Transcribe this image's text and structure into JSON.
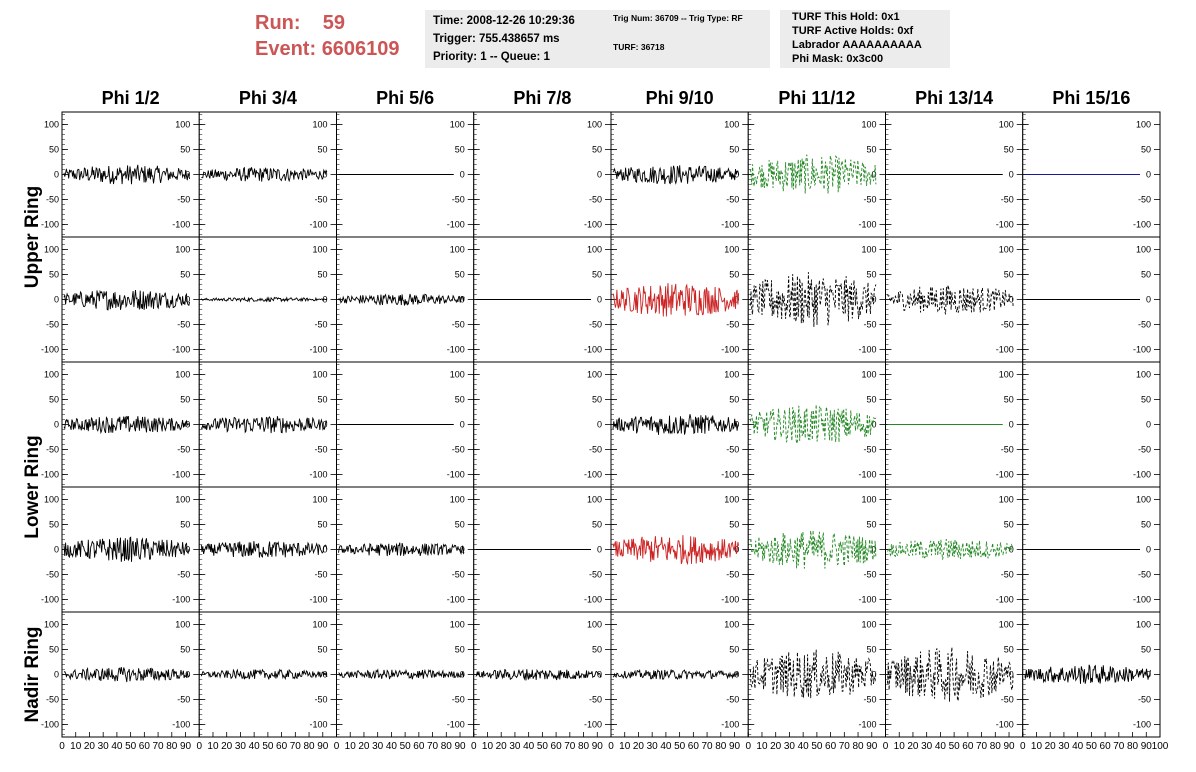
{
  "header": {
    "run_label": "Run:",
    "run_value": "59",
    "event_label": "Event:",
    "event_value": "6606109"
  },
  "info": {
    "time": "Time: 2008-12-26 10:29:36",
    "trigger": "Trigger: 755.438657 ms",
    "priority": "Priority: 1 -- Queue: 1",
    "trig_num": "Trig Num: 36709 -- Trig Type: RF",
    "turf": "TURF: 36718",
    "turf_this_hold": "TURF This Hold: 0x1",
    "turf_active_holds": "TURF Active Holds: 0xf",
    "labrador": "Labrador AAAAAAAAAA",
    "phi_mask": "Phi Mask: 0x3c00"
  },
  "columns": [
    "Phi 1/2",
    "Phi 3/4",
    "Phi 5/6",
    "Phi 7/8",
    "Phi 9/10",
    "Phi 11/12",
    "Phi 13/14",
    "Phi 15/16"
  ],
  "rows": [
    "Upper Ring",
    "Lower Ring",
    "Nadir Ring"
  ],
  "chart_data": {
    "type": "line",
    "title": "",
    "xlim": [
      0,
      100
    ],
    "ylim": [
      -125,
      125
    ],
    "x_ticks": [
      "0",
      "10",
      "20",
      "30",
      "40",
      "50",
      "60",
      "70",
      "80",
      "90",
      "100"
    ],
    "y_ticks": [
      "100",
      "50",
      "0",
      "-50",
      "-100"
    ],
    "colors": {
      "normal": "#000000",
      "triggered": "#cc2222",
      "active": "#228822",
      "masked_flat": "#1a1a99"
    },
    "panels": [
      [
        {
          "col": "Phi 1/2",
          "style": "solid",
          "color": "#000000",
          "amplitude": 20
        },
        {
          "col": "Phi 3/4",
          "style": "solid",
          "color": "#000000",
          "amplitude": 15
        },
        {
          "col": "Phi 5/6",
          "style": "flat",
          "color": "#000000",
          "amplitude": 0
        },
        {
          "col": "Phi 7/8",
          "style": "empty",
          "color": "#000000",
          "amplitude": 0
        },
        {
          "col": "Phi 9/10",
          "style": "solid",
          "color": "#000000",
          "amplitude": 20
        },
        {
          "col": "Phi 11/12",
          "style": "dashed",
          "color": "#228822",
          "amplitude": 40
        },
        {
          "col": "Phi 13/14",
          "style": "flat",
          "color": "#000000",
          "amplitude": 0
        },
        {
          "col": "Phi 15/16",
          "style": "flat",
          "color": "#1a1a99",
          "amplitude": 0
        }
      ],
      [
        {
          "col": "Phi 1/2",
          "style": "solid",
          "color": "#000000",
          "amplitude": 22
        },
        {
          "col": "Phi 3/4",
          "style": "solid",
          "color": "#000000",
          "amplitude": 4
        },
        {
          "col": "Phi 5/6",
          "style": "solid",
          "color": "#000000",
          "amplitude": 12
        },
        {
          "col": "Phi 7/8",
          "style": "flat",
          "color": "#000000",
          "amplitude": 0
        },
        {
          "col": "Phi 9/10",
          "style": "solid",
          "color": "#cc2222",
          "amplitude": 35
        },
        {
          "col": "Phi 11/12",
          "style": "dashed",
          "color": "#000000",
          "amplitude": 55
        },
        {
          "col": "Phi 13/14",
          "style": "dashed",
          "color": "#000000",
          "amplitude": 30
        },
        {
          "col": "Phi 15/16",
          "style": "flat",
          "color": "#000000",
          "amplitude": 0
        }
      ],
      [
        {
          "col": "Phi 1/2",
          "style": "solid",
          "color": "#000000",
          "amplitude": 18
        },
        {
          "col": "Phi 3/4",
          "style": "solid",
          "color": "#000000",
          "amplitude": 18
        },
        {
          "col": "Phi 5/6",
          "style": "flat",
          "color": "#000000",
          "amplitude": 0
        },
        {
          "col": "Phi 7/8",
          "style": "empty",
          "color": "#000000",
          "amplitude": 0
        },
        {
          "col": "Phi 9/10",
          "style": "solid",
          "color": "#000000",
          "amplitude": 22
        },
        {
          "col": "Phi 11/12",
          "style": "dashed",
          "color": "#228822",
          "amplitude": 40
        },
        {
          "col": "Phi 13/14",
          "style": "flat",
          "color": "#228822",
          "amplitude": 0
        },
        {
          "col": "Phi 15/16",
          "style": "empty",
          "color": "#000000",
          "amplitude": 0
        }
      ],
      [
        {
          "col": "Phi 1/2",
          "style": "solid",
          "color": "#000000",
          "amplitude": 25
        },
        {
          "col": "Phi 3/4",
          "style": "solid",
          "color": "#000000",
          "amplitude": 18
        },
        {
          "col": "Phi 5/6",
          "style": "solid",
          "color": "#000000",
          "amplitude": 14
        },
        {
          "col": "Phi 7/8",
          "style": "flat",
          "color": "#000000",
          "amplitude": 0
        },
        {
          "col": "Phi 9/10",
          "style": "solid",
          "color": "#cc2222",
          "amplitude": 30
        },
        {
          "col": "Phi 11/12",
          "style": "dashed",
          "color": "#228822",
          "amplitude": 40
        },
        {
          "col": "Phi 13/14",
          "style": "dashed",
          "color": "#228822",
          "amplitude": 22
        },
        {
          "col": "Phi 15/16",
          "style": "flat",
          "color": "#000000",
          "amplitude": 0
        }
      ],
      [
        {
          "col": "Phi 1/2",
          "style": "solid",
          "color": "#000000",
          "amplitude": 15
        },
        {
          "col": "Phi 3/4",
          "style": "solid",
          "color": "#000000",
          "amplitude": 10
        },
        {
          "col": "Phi 5/6",
          "style": "solid",
          "color": "#000000",
          "amplitude": 10
        },
        {
          "col": "Phi 7/8",
          "style": "solid",
          "color": "#000000",
          "amplitude": 12
        },
        {
          "col": "Phi 9/10",
          "style": "solid",
          "color": "#000000",
          "amplitude": 10
        },
        {
          "col": "Phi 11/12",
          "style": "dashed",
          "color": "#000000",
          "amplitude": 50
        },
        {
          "col": "Phi 13/14",
          "style": "dashed",
          "color": "#000000",
          "amplitude": 55
        },
        {
          "col": "Phi 15/16",
          "style": "solid",
          "color": "#000000",
          "amplitude": 20
        }
      ]
    ]
  }
}
